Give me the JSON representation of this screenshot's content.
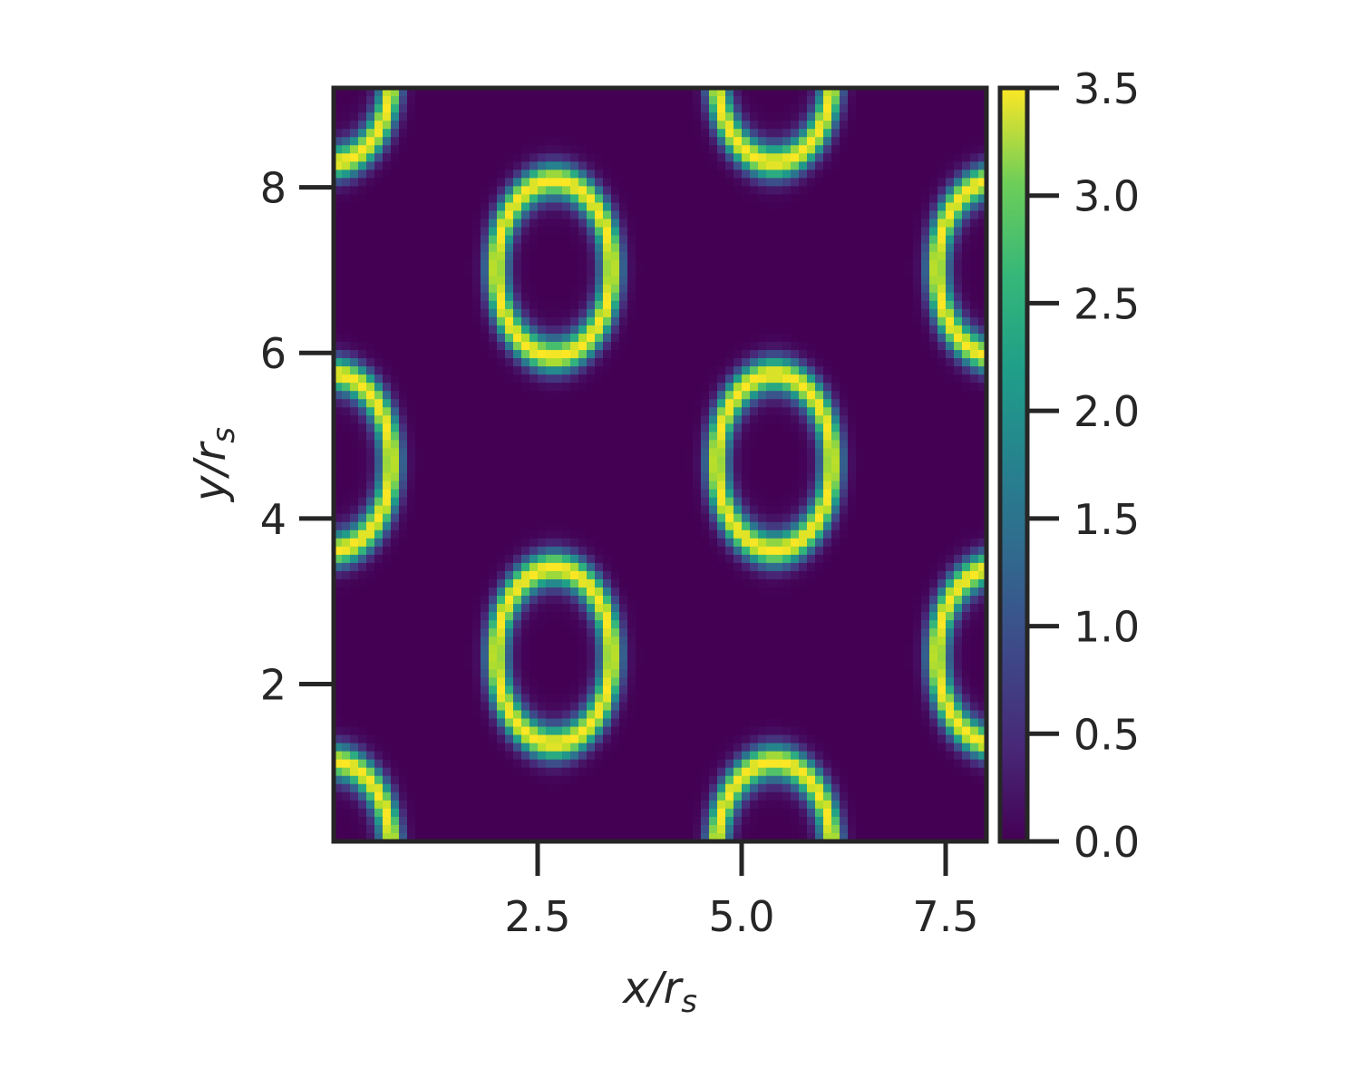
{
  "chart_data": {
    "type": "heatmap",
    "title": "",
    "xlabel": "x/r",
    "xlabel_sub": "s",
    "ylabel": "y/r",
    "ylabel_sub": "s",
    "xlim": [
      0.0,
      8.0
    ],
    "ylim": [
      0.1,
      9.2
    ],
    "x_ticks": [
      2.5,
      5.0,
      7.5
    ],
    "x_tick_labels": [
      "2.5",
      "5.0",
      "7.5"
    ],
    "y_ticks": [
      2,
      4,
      6,
      8
    ],
    "y_tick_labels": [
      "2",
      "4",
      "6",
      "8"
    ],
    "colorbar": {
      "range": [
        0.0,
        3.5
      ],
      "ticks": [
        0.0,
        0.5,
        1.0,
        1.5,
        2.0,
        2.5,
        3.0,
        3.5
      ],
      "tick_labels": [
        "0.0",
        "0.5",
        "1.0",
        "1.5",
        "2.0",
        "2.5",
        "3.0",
        "3.5"
      ],
      "colormap": "viridis"
    },
    "pattern": {
      "description_values": "kagome-like density, peak value 3.5, minimum 0.0",
      "lattice_period_x": 2.7,
      "lattice_period_y": 4.68,
      "peak_value": 3.5
    },
    "grid": false,
    "legend": "none"
  },
  "colors": {
    "frame": "#262626",
    "text": "#262626",
    "viridis_low": "#440154",
    "viridis_mid": "#21918c",
    "viridis_high": "#fde725"
  }
}
